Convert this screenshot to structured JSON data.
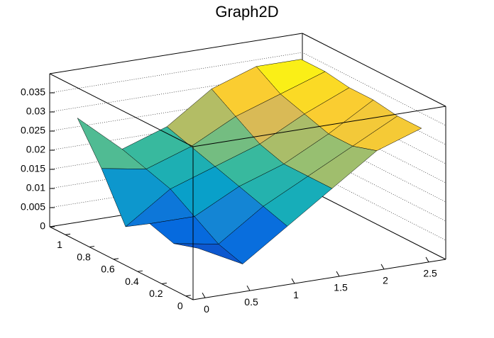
{
  "chart_data": {
    "type": "surface",
    "title": "Graph2D",
    "x": [
      0,
      0.5,
      1,
      1.5,
      2,
      2.5
    ],
    "y": [
      0,
      0.2,
      0.4,
      0.6,
      0.8,
      1
    ],
    "z": [
      [
        0.012,
        0.006,
        0.014,
        0.022,
        0.03,
        0.034
      ],
      [
        0.01,
        0.008,
        0.016,
        0.022,
        0.028,
        0.034
      ],
      [
        0.012,
        0.012,
        0.018,
        0.022,
        0.028,
        0.035
      ],
      [
        0.008,
        0.016,
        0.02,
        0.024,
        0.03,
        0.035
      ],
      [
        0.02,
        0.018,
        0.022,
        0.028,
        0.032,
        0.036
      ],
      [
        0.03,
        0.02,
        0.024,
        0.032,
        0.036,
        0.036
      ]
    ],
    "xlim": [
      -0.135,
      2.69
    ],
    "ylim": [
      -0.06,
      1.13
    ],
    "zlim": [
      0,
      0.04
    ],
    "xticks": [
      0,
      0.5,
      1,
      1.5,
      2,
      2.5
    ],
    "yticks": [
      0,
      0.2,
      0.4,
      0.6,
      0.8,
      1
    ],
    "zticks": [
      0,
      0.005,
      0.01,
      0.015,
      0.02,
      0.025,
      0.03,
      0.035
    ],
    "grid": true,
    "colormap": [
      "#352a87",
      "#0363e1",
      "#1485d4",
      "#06a7c6",
      "#38b99e",
      "#92bf73",
      "#d9ba56",
      "#fcce2e",
      "#f9fb0e"
    ]
  }
}
